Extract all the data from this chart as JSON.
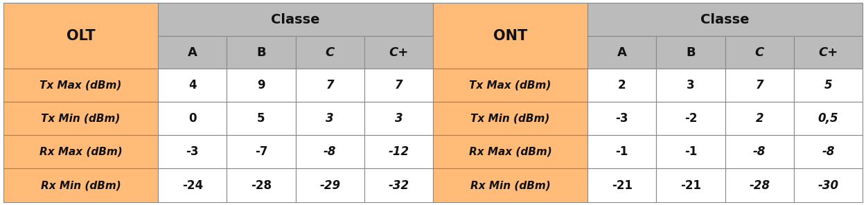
{
  "orange": "#FFBB77",
  "gray_header": "#BBBBBB",
  "white": "#FFFFFF",
  "border_color": "#888888",
  "olt_rows": [
    "Tx Max (dBm)",
    "Tx Min (dBm)",
    "Rx Max (dBm)",
    "Rx Min (dBm)"
  ],
  "ont_rows": [
    "Tx Max (dBm)",
    "Tx Min (dBm)",
    "Rx Max (dBm)",
    "Rx Min (dBm)"
  ],
  "classes": [
    "A",
    "B",
    "C",
    "C+"
  ],
  "olt_data": [
    [
      "4",
      "9",
      "7",
      "7"
    ],
    [
      "0",
      "5",
      "3",
      "3"
    ],
    [
      "-3",
      "-7",
      "-8",
      "-12"
    ],
    [
      "-24",
      "-28",
      "-29",
      "-32"
    ]
  ],
  "ont_data": [
    [
      "2",
      "3",
      "7",
      "5"
    ],
    [
      "-3",
      "-2",
      "2",
      "0,5"
    ],
    [
      "-1",
      "-1",
      "-8",
      "-8"
    ],
    [
      "-21",
      "-21",
      "-28",
      "-30"
    ]
  ],
  "classes_italic": [
    false,
    false,
    true,
    true
  ],
  "data_italic_cols": [
    false,
    false,
    true,
    true
  ]
}
